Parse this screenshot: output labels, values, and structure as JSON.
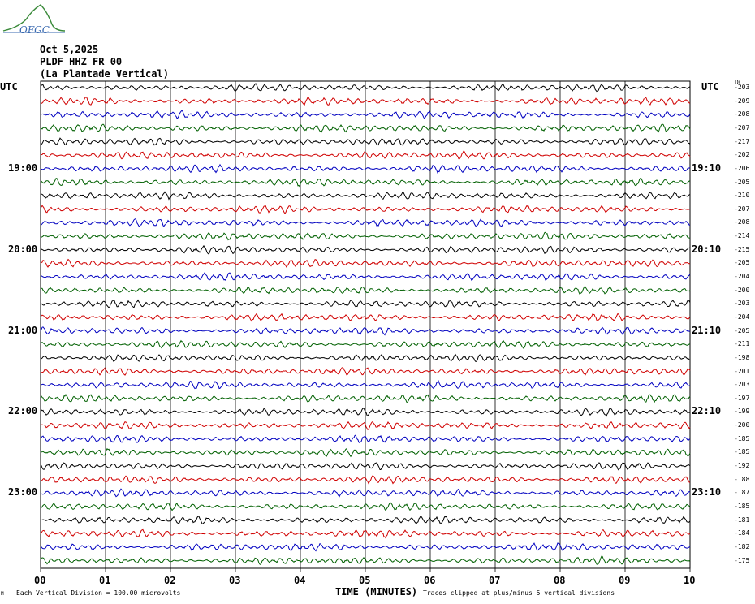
{
  "header": {
    "date": "Oct 5,2025",
    "station": "PLDF HHZ FR 00",
    "location": "(La Plantade Vertical)",
    "logo_text": "OFGC"
  },
  "axis": {
    "left_label": "UTC",
    "right_label": "UTC",
    "dc_label": "DC",
    "xlabel": "TIME (MINUTES)",
    "footer_left": "Each Vertical Division =  100.00 microvolts",
    "footer_right": "Traces clipped at plus/minus 5 vertical divisions",
    "footer_mark": "M"
  },
  "colors": {
    "trace": [
      "#000000",
      "#d00000",
      "#0000c0",
      "#006000"
    ],
    "grid": "#000000"
  },
  "chart_data": {
    "type": "line",
    "xlim": [
      0,
      10
    ],
    "x_ticks": [
      "00",
      "01",
      "02",
      "03",
      "04",
      "05",
      "06",
      "07",
      "08",
      "09",
      "10"
    ],
    "rows": 36,
    "left_times": [
      {
        "row": 6,
        "label": "19:00"
      },
      {
        "row": 12,
        "label": "20:00"
      },
      {
        "row": 18,
        "label": "21:00"
      },
      {
        "row": 24,
        "label": "22:00"
      },
      {
        "row": 30,
        "label": "23:00"
      }
    ],
    "right_times": [
      {
        "row": 6,
        "label": "19:10"
      },
      {
        "row": 12,
        "label": "20:10"
      },
      {
        "row": 18,
        "label": "21:10"
      },
      {
        "row": 24,
        "label": "22:10"
      },
      {
        "row": 30,
        "label": "23:10"
      }
    ],
    "dc_values": [
      "-203",
      "-209",
      "-208",
      "-207",
      "-217",
      "-202",
      "-206",
      "-205",
      "-210",
      "-207",
      "-208",
      "-214",
      "-215",
      "-205",
      "-204",
      "-200",
      "-203",
      "-204",
      "-205",
      "-211",
      "-198",
      "-201",
      "-203",
      "-197",
      "-199",
      "-200",
      "-185",
      "-185",
      "-192",
      "-188",
      "-187",
      "-185",
      "-181",
      "-184",
      "-182",
      "-175"
    ]
  }
}
